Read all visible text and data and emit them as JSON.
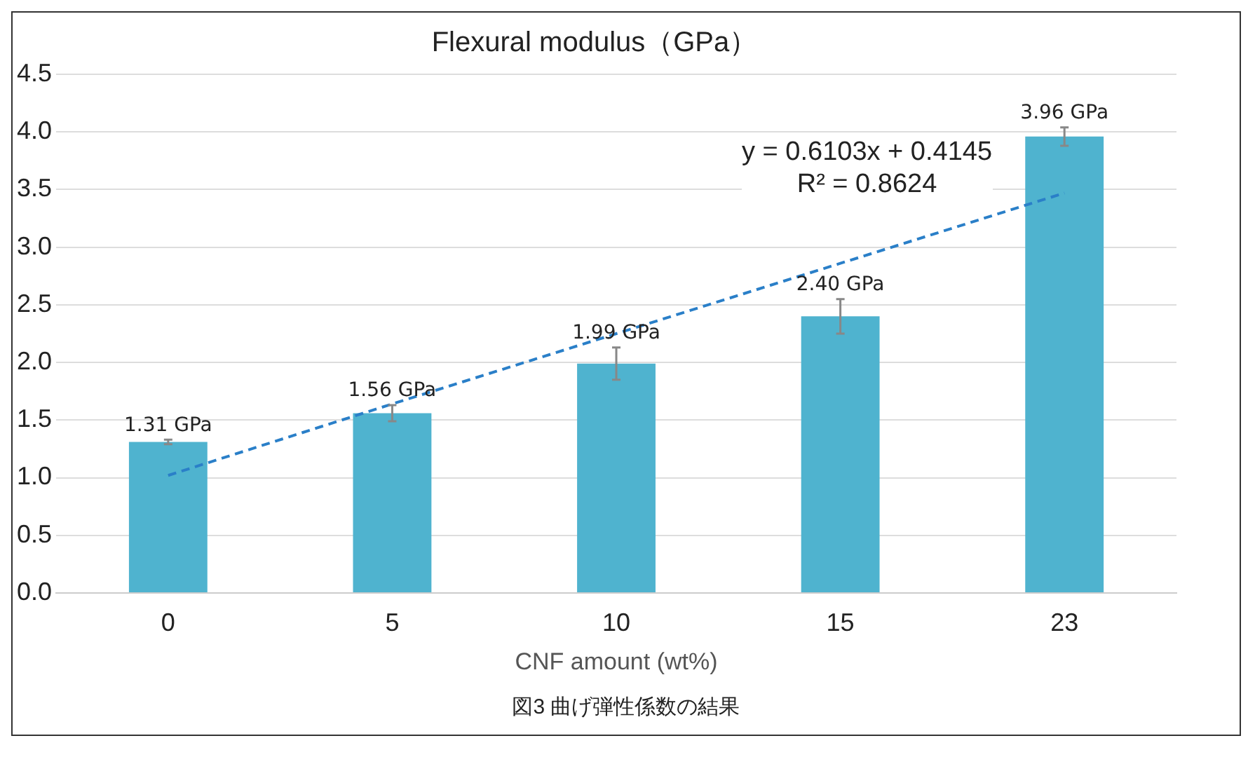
{
  "chart_data": {
    "type": "bar",
    "title": "Flexural modulus（GPa）",
    "xlabel": "CNF amount (wt%)",
    "categories": [
      "0",
      "5",
      "10",
      "15",
      "23"
    ],
    "series": [
      {
        "color": "#4fb3cf",
        "values": [
          1.31,
          1.56,
          1.99,
          2.4,
          3.96
        ],
        "errors": [
          0.02,
          0.07,
          0.14,
          0.15,
          0.08
        ],
        "value_labels": [
          "1.31 GPa",
          "1.56 GPa",
          "1.99 GPa",
          "2.40 GPa",
          "3.96 GPa"
        ]
      },
      {
        "type": "line",
        "color": "#2a7fc8",
        "line_style": "dashed",
        "marker": "none",
        "values": [
          1.02,
          1.64,
          2.25,
          2.86,
          3.47
        ]
      }
    ],
    "ylim": [
      0,
      4.5
    ],
    "yticks": [
      {
        "value": 0,
        "label": "0.0"
      },
      {
        "value": 0.5,
        "label": "0.5"
      },
      {
        "value": 1,
        "label": "1.0"
      },
      {
        "value": 1.5,
        "label": "1.5"
      },
      {
        "value": 2,
        "label": "2.0"
      },
      {
        "value": 2.5,
        "label": "2.5"
      },
      {
        "value": 3,
        "label": "3.0"
      },
      {
        "value": 3.5,
        "label": "3.5"
      },
      {
        "value": 4,
        "label": "4.0"
      },
      {
        "value": 4.5,
        "label": "4.5"
      }
    ],
    "grid": "y",
    "legend": false,
    "annotations": [
      "y = 0.6103x + 0.4145",
      "R² = 0.8624",
      "図3  曲げ弾性係数の結果"
    ]
  }
}
